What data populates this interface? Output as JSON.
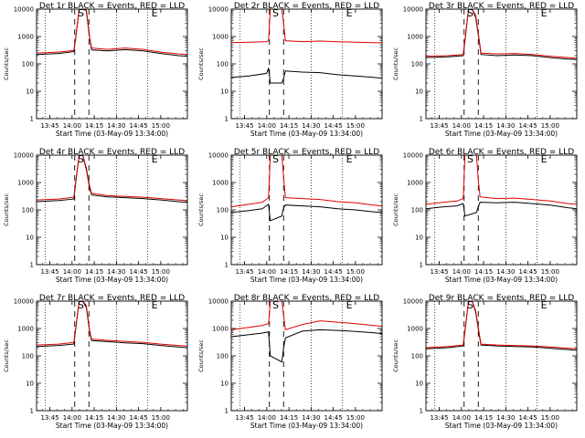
{
  "chart_data": [
    {
      "type": "line",
      "title": "Det 1r BLACK = Events, RED = LLD",
      "xlabel": "Start Time (03-May-09 13:34:00)",
      "ylabel": "Counts/sec",
      "yscale": "log",
      "ylim": [
        1,
        10000
      ],
      "yticks": [
        "1",
        "10",
        "100",
        "1000",
        "10000"
      ],
      "xticks": [
        "13:45",
        "14:00",
        "14:15",
        "14:30",
        "14:45",
        "15:00"
      ],
      "xlim": [
        13.6,
        15.3
      ],
      "markers": {
        "S": 14.1,
        "E": 14.93
      },
      "dashed": [
        14.03,
        14.19
      ],
      "dotted": [
        13.7,
        14.5,
        14.85
      ],
      "series": [
        {
          "name": "BLACK = Events",
          "color": "#000000",
          "x": [
            13.6,
            13.85,
            14.02,
            14.04,
            14.08,
            14.12,
            14.16,
            14.2,
            14.22,
            14.4,
            14.6,
            14.8,
            15.0,
            15.2,
            15.3
          ],
          "y": [
            220,
            240,
            280,
            800,
            10000,
            10000,
            9000,
            800,
            320,
            300,
            330,
            300,
            240,
            200,
            190
          ]
        },
        {
          "name": "RED = LLD",
          "color": "#e00000",
          "x": [
            13.6,
            13.85,
            14.02,
            14.04,
            14.08,
            14.12,
            14.16,
            14.2,
            14.22,
            14.4,
            14.6,
            14.8,
            15.0,
            15.2,
            15.3
          ],
          "y": [
            250,
            270,
            310,
            900,
            10000,
            10000,
            10000,
            900,
            380,
            340,
            380,
            340,
            270,
            230,
            220
          ]
        }
      ]
    },
    {
      "type": "line",
      "title": "Det 2r BLACK = Events, RED = LLD",
      "xlabel": "Start Time (03-May-09 13:34:00)",
      "ylabel": "Counts/sec",
      "yscale": "log",
      "ylim": [
        1,
        10000
      ],
      "yticks": [
        "1",
        "10",
        "100",
        "1000",
        "10000"
      ],
      "xticks": [
        "13:45",
        "14:00",
        "14:15",
        "14:30",
        "14:45",
        "15:00"
      ],
      "xlim": [
        13.6,
        15.3
      ],
      "markers": {
        "S": 14.1,
        "E": 14.93
      },
      "dashed": [
        14.03,
        14.19
      ],
      "dotted": [
        13.7,
        14.5,
        14.85
      ],
      "series": [
        {
          "name": "BLACK = Events",
          "color": "#000000",
          "x": [
            13.6,
            13.8,
            14.0,
            14.02,
            14.04,
            14.17,
            14.19,
            14.21,
            14.4,
            14.6,
            14.8,
            15.0,
            15.2,
            15.3
          ],
          "y": [
            32,
            36,
            45,
            70,
            20,
            20,
            30,
            55,
            50,
            48,
            40,
            36,
            32,
            30
          ]
        },
        {
          "name": "RED = LLD",
          "color": "#e00000",
          "x": [
            13.6,
            13.8,
            14.0,
            14.02,
            14.04,
            14.17,
            14.19,
            14.21,
            14.4,
            14.6,
            14.8,
            15.0,
            15.2,
            15.3
          ],
          "y": [
            600,
            620,
            650,
            700,
            10000,
            10000,
            3000,
            700,
            650,
            680,
            640,
            620,
            600,
            590
          ]
        }
      ]
    },
    {
      "type": "line",
      "title": "Det 3r BLACK = Events, RED = LLD",
      "xlabel": "Start Time (03-May-09 13:34:00)",
      "ylabel": "Counts/sec",
      "yscale": "log",
      "ylim": [
        1,
        10000
      ],
      "yticks": [
        "1",
        "10",
        "100",
        "1000",
        "10000"
      ],
      "xticks": [
        "13:45",
        "14:00",
        "14:15",
        "14:30",
        "14:45",
        "15:00"
      ],
      "xlim": [
        13.6,
        15.3
      ],
      "markers": {
        "S": 14.1,
        "E": 14.93
      },
      "dashed": [
        14.03,
        14.19
      ],
      "dotted": [
        13.7,
        14.5,
        14.85
      ],
      "series": [
        {
          "name": "BLACK = Events",
          "color": "#000000",
          "x": [
            13.6,
            13.85,
            14.02,
            14.04,
            14.08,
            14.12,
            14.16,
            14.2,
            14.22,
            14.4,
            14.6,
            14.8,
            15.0,
            15.2,
            15.3
          ],
          "y": [
            170,
            180,
            200,
            700,
            10000,
            10000,
            5000,
            700,
            220,
            200,
            210,
            200,
            170,
            150,
            145
          ]
        },
        {
          "name": "RED = LLD",
          "color": "#e00000",
          "x": [
            13.6,
            13.85,
            14.02,
            14.04,
            14.08,
            14.12,
            14.16,
            14.2,
            14.22,
            14.4,
            14.6,
            14.8,
            15.0,
            15.2,
            15.3
          ],
          "y": [
            190,
            200,
            220,
            800,
            10000,
            10000,
            6000,
            800,
            250,
            230,
            240,
            220,
            190,
            170,
            160
          ]
        }
      ]
    },
    {
      "type": "line",
      "title": "Det 4r BLACK = Events, RED = LLD",
      "xlabel": "Start Time (03-May-09 13:34:00)",
      "ylabel": "Counts/sec",
      "yscale": "log",
      "ylim": [
        1,
        10000
      ],
      "yticks": [
        "1",
        "10",
        "100",
        "1000",
        "10000"
      ],
      "xticks": [
        "13:45",
        "14:00",
        "14:15",
        "14:30",
        "14:45",
        "15:00"
      ],
      "xlim": [
        13.6,
        15.3
      ],
      "markers": {
        "S": 14.1,
        "E": 14.93
      },
      "dashed": [
        14.03,
        14.19
      ],
      "dotted": [
        13.7,
        14.5,
        14.85
      ],
      "series": [
        {
          "name": "BLACK = Events",
          "color": "#000000",
          "x": [
            13.6,
            13.85,
            14.02,
            14.04,
            14.08,
            14.12,
            14.16,
            14.2,
            14.22,
            14.4,
            14.6,
            14.8,
            15.0,
            15.2,
            15.3
          ],
          "y": [
            200,
            220,
            250,
            900,
            10000,
            10000,
            3000,
            600,
            350,
            300,
            280,
            260,
            230,
            200,
            190
          ]
        },
        {
          "name": "RED = LLD",
          "color": "#e00000",
          "x": [
            13.6,
            13.85,
            14.02,
            14.04,
            14.08,
            14.12,
            14.16,
            14.2,
            14.22,
            14.4,
            14.6,
            14.8,
            15.0,
            15.2,
            15.3
          ],
          "y": [
            230,
            250,
            290,
            1000,
            10000,
            10000,
            3500,
            700,
            400,
            330,
            310,
            290,
            260,
            230,
            220
          ]
        }
      ]
    },
    {
      "type": "line",
      "title": "Det 5r BLACK = Events, RED = LLD",
      "xlabel": "Start Time (03-May-09 13:34:00)",
      "ylabel": "Counts/sec",
      "yscale": "log",
      "ylim": [
        1,
        10000
      ],
      "yticks": [
        "1",
        "10",
        "100",
        "1000",
        "10000"
      ],
      "xticks": [
        "13:45",
        "14:00",
        "14:15",
        "14:30",
        "14:45",
        "15:00"
      ],
      "xlim": [
        13.6,
        15.3
      ],
      "markers": {
        "S": 14.1,
        "E": 14.93
      },
      "dashed": [
        14.03,
        14.19
      ],
      "dotted": [
        13.7,
        14.5,
        14.85
      ],
      "series": [
        {
          "name": "BLACK = Events",
          "color": "#000000",
          "x": [
            13.6,
            13.8,
            13.95,
            14.02,
            14.04,
            14.17,
            14.19,
            14.21,
            14.4,
            14.6,
            14.8,
            15.0,
            15.2,
            15.3
          ],
          "y": [
            80,
            95,
            110,
            160,
            40,
            60,
            120,
            150,
            140,
            130,
            110,
            100,
            85,
            80
          ]
        },
        {
          "name": "RED = LLD",
          "color": "#e00000",
          "x": [
            13.6,
            13.8,
            13.95,
            14.02,
            14.04,
            14.17,
            14.19,
            14.21,
            14.4,
            14.6,
            14.8,
            15.0,
            15.2,
            15.3
          ],
          "y": [
            130,
            160,
            190,
            280,
            10000,
            10000,
            1500,
            280,
            260,
            240,
            200,
            180,
            150,
            140
          ]
        }
      ]
    },
    {
      "type": "line",
      "title": "Det 6r BLACK = Events, RED = LLD",
      "xlabel": "Start Time (03-May-09 13:34:00)",
      "ylabel": "Counts/sec",
      "yscale": "log",
      "ylim": [
        1,
        10000
      ],
      "yticks": [
        "1",
        "10",
        "100",
        "1000",
        "10000"
      ],
      "xticks": [
        "13:45",
        "14:00",
        "14:15",
        "14:30",
        "14:45",
        "15:00"
      ],
      "xlim": [
        13.6,
        15.3
      ],
      "markers": {
        "S": 14.1,
        "E": 14.93
      },
      "dashed": [
        14.03,
        14.19
      ],
      "dotted": [
        13.7,
        14.5,
        14.85
      ],
      "series": [
        {
          "name": "BLACK = Events",
          "color": "#000000",
          "x": [
            13.6,
            13.8,
            13.95,
            14.02,
            14.04,
            14.17,
            14.19,
            14.21,
            14.4,
            14.6,
            14.8,
            15.0,
            15.2,
            15.3
          ],
          "y": [
            110,
            130,
            140,
            170,
            60,
            80,
            130,
            190,
            180,
            190,
            170,
            150,
            120,
            110
          ]
        },
        {
          "name": "RED = LLD",
          "color": "#e00000",
          "x": [
            13.6,
            13.8,
            13.95,
            14.02,
            14.04,
            14.17,
            14.19,
            14.21,
            14.4,
            14.6,
            14.8,
            15.0,
            15.2,
            15.3
          ],
          "y": [
            160,
            190,
            210,
            260,
            10000,
            10000,
            1200,
            300,
            260,
            270,
            240,
            210,
            170,
            160
          ]
        }
      ]
    },
    {
      "type": "line",
      "title": "Det 7r BLACK = Events, RED = LLD",
      "xlabel": "Start Time (03-May-09 13:34:00)",
      "ylabel": "Counts/sec",
      "yscale": "log",
      "ylim": [
        1,
        10000
      ],
      "yticks": [
        "1",
        "10",
        "100",
        "1000",
        "10000"
      ],
      "xticks": [
        "13:45",
        "14:00",
        "14:15",
        "14:30",
        "14:45",
        "15:00"
      ],
      "xlim": [
        13.6,
        15.3
      ],
      "markers": {
        "S": 14.1,
        "E": 14.93
      },
      "dashed": [
        14.03,
        14.19
      ],
      "dotted": [
        13.7,
        14.5,
        14.85
      ],
      "series": [
        {
          "name": "BLACK = Events",
          "color": "#000000",
          "x": [
            13.6,
            13.85,
            14.02,
            14.04,
            14.08,
            14.12,
            14.16,
            14.2,
            14.22,
            14.4,
            14.6,
            14.8,
            15.0,
            15.2,
            15.3
          ],
          "y": [
            220,
            240,
            270,
            900,
            10000,
            10000,
            6000,
            700,
            360,
            330,
            300,
            280,
            240,
            210,
            200
          ]
        },
        {
          "name": "RED = LLD",
          "color": "#e00000",
          "x": [
            13.6,
            13.85,
            14.02,
            14.04,
            14.08,
            14.12,
            14.16,
            14.2,
            14.22,
            14.4,
            14.6,
            14.8,
            15.0,
            15.2,
            15.3
          ],
          "y": [
            250,
            270,
            310,
            1000,
            10000,
            10000,
            7000,
            800,
            410,
            370,
            340,
            310,
            270,
            240,
            230
          ]
        }
      ]
    },
    {
      "type": "line",
      "title": "Det 8r BLACK = Events, RED = LLD",
      "xlabel": "Start Time (03-May-09 13:34:00)",
      "ylabel": "Counts/sec",
      "yscale": "log",
      "ylim": [
        1,
        10000
      ],
      "yticks": [
        "1",
        "10",
        "100",
        "1000",
        "10000"
      ],
      "xticks": [
        "13:45",
        "14:00",
        "14:15",
        "14:30",
        "14:45",
        "15:00"
      ],
      "xlim": [
        13.6,
        15.3
      ],
      "markers": {
        "S": 14.1,
        "E": 14.93
      },
      "dashed": [
        14.03,
        14.19
      ],
      "dotted": [
        13.7,
        14.5,
        14.85
      ],
      "series": [
        {
          "name": "BLACK = Events",
          "color": "#000000",
          "x": [
            13.6,
            13.8,
            13.95,
            14.02,
            14.04,
            14.17,
            14.19,
            14.21,
            14.4,
            14.6,
            14.8,
            15.0,
            15.2,
            15.3
          ],
          "y": [
            500,
            600,
            680,
            750,
            100,
            60,
            200,
            450,
            800,
            900,
            850,
            780,
            700,
            650
          ]
        },
        {
          "name": "RED = LLD",
          "color": "#e00000",
          "x": [
            13.6,
            13.8,
            13.95,
            14.02,
            14.04,
            14.17,
            14.19,
            14.21,
            14.4,
            14.6,
            14.8,
            15.0,
            15.2,
            15.3
          ],
          "y": [
            900,
            1100,
            1300,
            1500,
            10000,
            10000,
            3000,
            900,
            1400,
            1900,
            1700,
            1500,
            1300,
            1200
          ]
        }
      ]
    },
    {
      "type": "line",
      "title": "Det 9r BLACK = Events, RED = LLD",
      "xlabel": "Start Time (03-May-09 13:34:00)",
      "ylabel": "Counts/sec",
      "yscale": "log",
      "ylim": [
        1,
        10000
      ],
      "yticks": [
        "1",
        "10",
        "100",
        "1000",
        "10000"
      ],
      "xticks": [
        "13:45",
        "14:00",
        "14:15",
        "14:30",
        "14:45",
        "15:00"
      ],
      "xlim": [
        13.6,
        15.3
      ],
      "markers": {
        "S": 14.1,
        "E": 14.93
      },
      "dashed": [
        14.03,
        14.19
      ],
      "dotted": [
        13.7,
        14.5,
        14.85
      ],
      "series": [
        {
          "name": "BLACK = Events",
          "color": "#000000",
          "x": [
            13.6,
            13.85,
            14.02,
            14.04,
            14.08,
            14.12,
            14.16,
            14.2,
            14.22,
            14.4,
            14.6,
            14.8,
            15.0,
            15.2,
            15.3
          ],
          "y": [
            180,
            200,
            230,
            800,
            10000,
            10000,
            4000,
            600,
            250,
            230,
            220,
            210,
            190,
            170,
            160
          ]
        },
        {
          "name": "RED = LLD",
          "color": "#e00000",
          "x": [
            13.6,
            13.85,
            14.02,
            14.04,
            14.08,
            14.12,
            14.16,
            14.2,
            14.22,
            14.4,
            14.6,
            14.8,
            15.0,
            15.2,
            15.3
          ],
          "y": [
            200,
            220,
            250,
            900,
            10000,
            10000,
            4500,
            700,
            270,
            250,
            240,
            230,
            210,
            190,
            180
          ]
        }
      ]
    }
  ]
}
